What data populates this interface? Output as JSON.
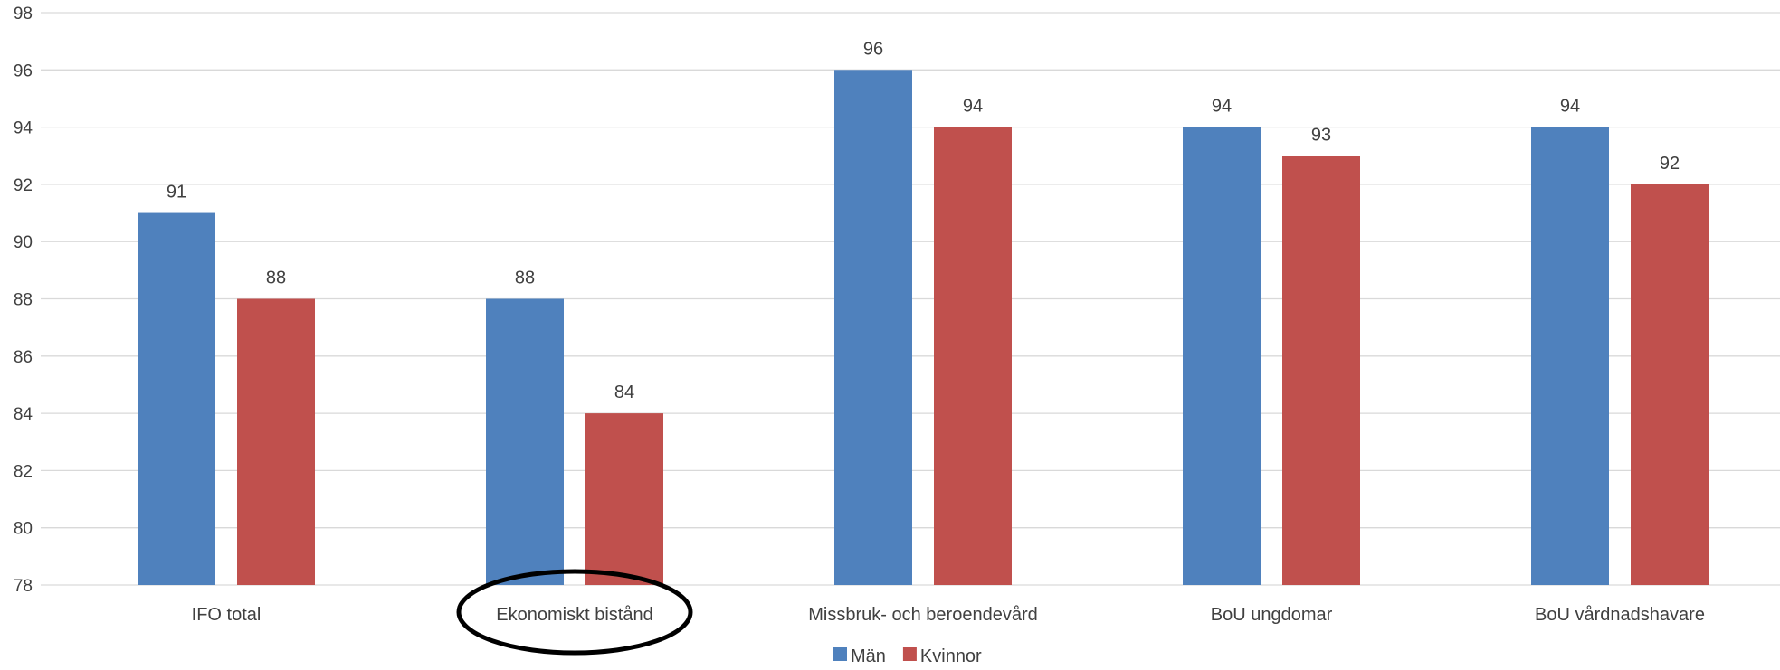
{
  "chart_data": {
    "type": "bar",
    "categories": [
      "IFO total",
      "Ekonomiskt bistånd",
      "Missbruk- och beroendevård",
      "BoU ungdomar",
      "BoU vårdnadshavare"
    ],
    "series": [
      {
        "name": "Män",
        "color": "#4F81BD",
        "values": [
          91,
          88,
          96,
          94,
          94
        ]
      },
      {
        "name": "Kvinnor",
        "color": "#C0504D",
        "values": [
          88,
          84,
          94,
          93,
          92
        ]
      }
    ],
    "ylim": [
      78,
      98
    ],
    "yticks": [
      78,
      80,
      82,
      84,
      86,
      88,
      90,
      92,
      94,
      96,
      98
    ],
    "grid": true,
    "legend_position": "bottom",
    "highlighted_category": "Ekonomiskt bistånd"
  },
  "colors": {
    "grid": "#D9D9D9",
    "text": "#404040",
    "highlight_ellipse": "#000000"
  }
}
